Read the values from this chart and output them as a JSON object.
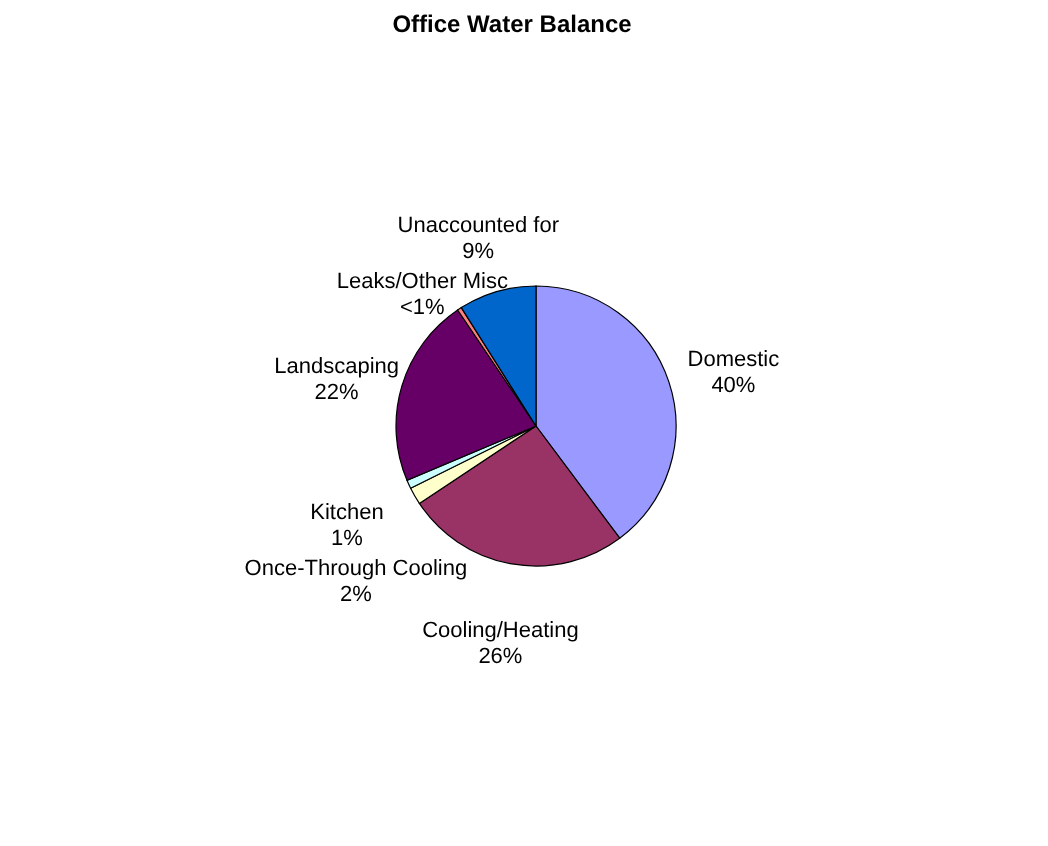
{
  "chart_data": {
    "type": "pie",
    "title": "Office Water Balance",
    "categories": [
      "Domestic",
      "Cooling/Heating",
      "Once-Through Cooling",
      "Kitchen",
      "Landscaping",
      "Leaks/Other Misc",
      "Unaccounted for"
    ],
    "values": [
      40,
      26,
      2,
      1,
      22,
      0.5,
      9
    ],
    "value_labels": [
      "40%",
      "26%",
      "2%",
      "1%",
      "22%",
      "<1%",
      "9%"
    ],
    "colors": [
      "#9999ff",
      "#993366",
      "#ffffcc",
      "#ccffff",
      "#660066",
      "#ff8080",
      "#0066cc"
    ],
    "legend": false
  }
}
